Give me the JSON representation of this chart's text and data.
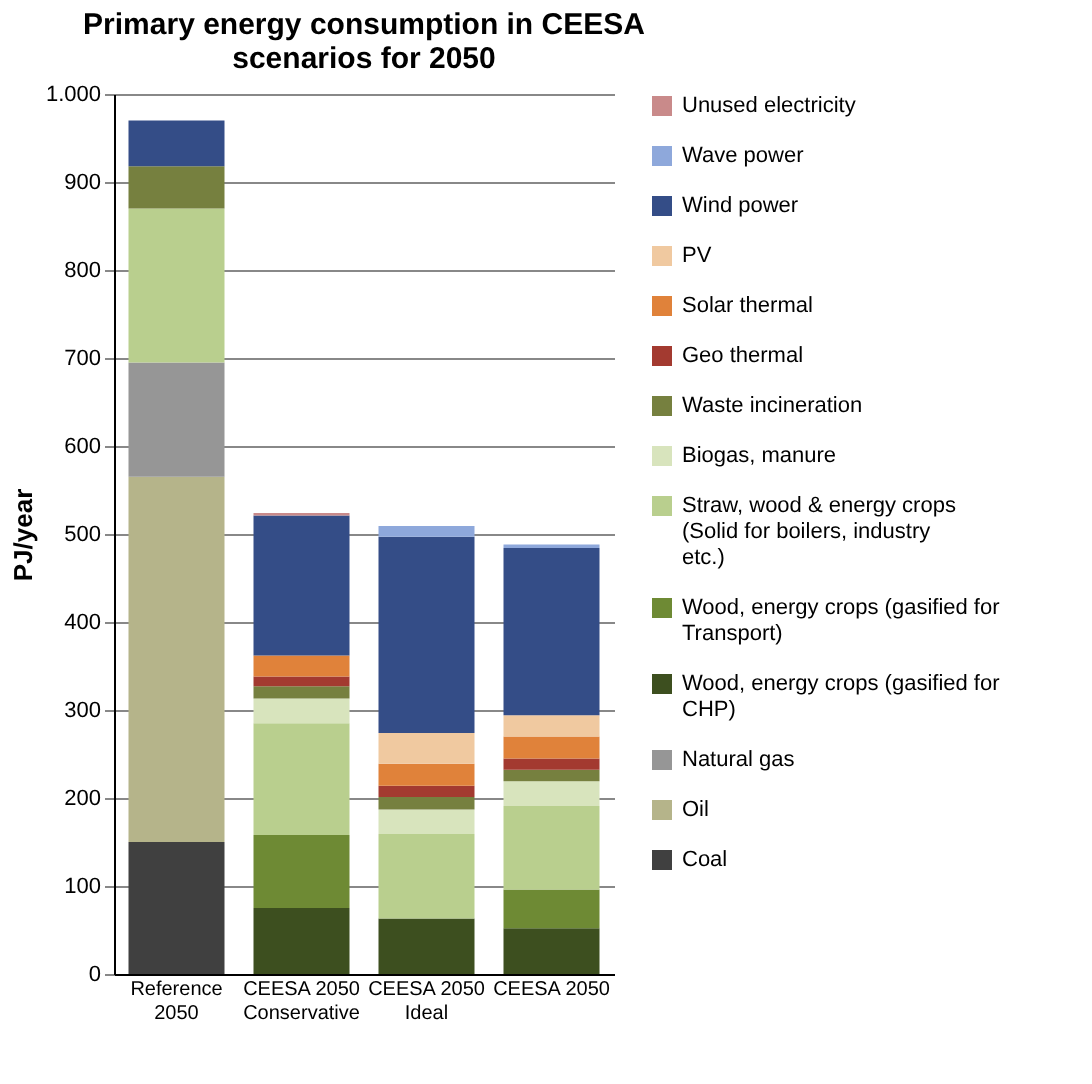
{
  "chart_data": {
    "type": "bar",
    "stacked": true,
    "title": "Primary energy consumption in CEESA scenarios for 2050",
    "ylabel": "PJ/year",
    "categories": [
      "Reference 2050",
      "CEESA 2050 Conservative",
      "CEESA 2050 Ideal",
      "CEESA 2050"
    ],
    "ylim": [
      0,
      1000
    ],
    "yticks": [
      0,
      100,
      200,
      300,
      400,
      500,
      600,
      700,
      800,
      900,
      {
        "value": 1000,
        "label": "1.000"
      }
    ],
    "grid": "y",
    "legend": "right",
    "series": [
      {
        "name": "Coal",
        "color": "#404040",
        "values": [
          150,
          null,
          null,
          null
        ]
      },
      {
        "name": "Oil",
        "color": "#b5b48a",
        "values": [
          415,
          null,
          null,
          null
        ]
      },
      {
        "name": "Natural gas",
        "color": "#969696",
        "values": [
          130,
          null,
          null,
          null
        ]
      },
      {
        "name": "Wood, energy crops (gasified for CHP)",
        "color": "#3d4f1f",
        "values": [
          null,
          75,
          63,
          52
        ]
      },
      {
        "name": "Wood, energy crops (gasified for Transport)",
        "color": "#6e8a34",
        "values": [
          null,
          83,
          null,
          44
        ]
      },
      {
        "name": "Straw, wood & energy crops (Solid for boilers, industry etc.)",
        "color": "#b9cf8e",
        "values": [
          175,
          127,
          96,
          95
        ]
      },
      {
        "name": "Biogas, manure",
        "color": "#d8e4bd",
        "values": [
          null,
          28,
          28,
          28
        ]
      },
      {
        "name": "Waste incineration",
        "color": "#76803f",
        "values": [
          48,
          14,
          14,
          13
        ]
      },
      {
        "name": "Geo thermal",
        "color": "#a33a30",
        "values": [
          null,
          11,
          13,
          13
        ]
      },
      {
        "name": "Solar thermal",
        "color": "#e0823a",
        "values": [
          null,
          24,
          25,
          25
        ]
      },
      {
        "name": "PV",
        "color": "#f0c9a0",
        "values": [
          null,
          null,
          35,
          24
        ]
      },
      {
        "name": "Wind power",
        "color": "#344d87",
        "values": [
          52,
          159,
          223,
          190
        ]
      },
      {
        "name": "Wave power",
        "color": "#8ea8db",
        "values": [
          null,
          null,
          12,
          4
        ]
      },
      {
        "name": "Unused electricity",
        "color": "#c98a8a",
        "values": [
          null,
          3,
          null,
          null
        ]
      }
    ]
  }
}
